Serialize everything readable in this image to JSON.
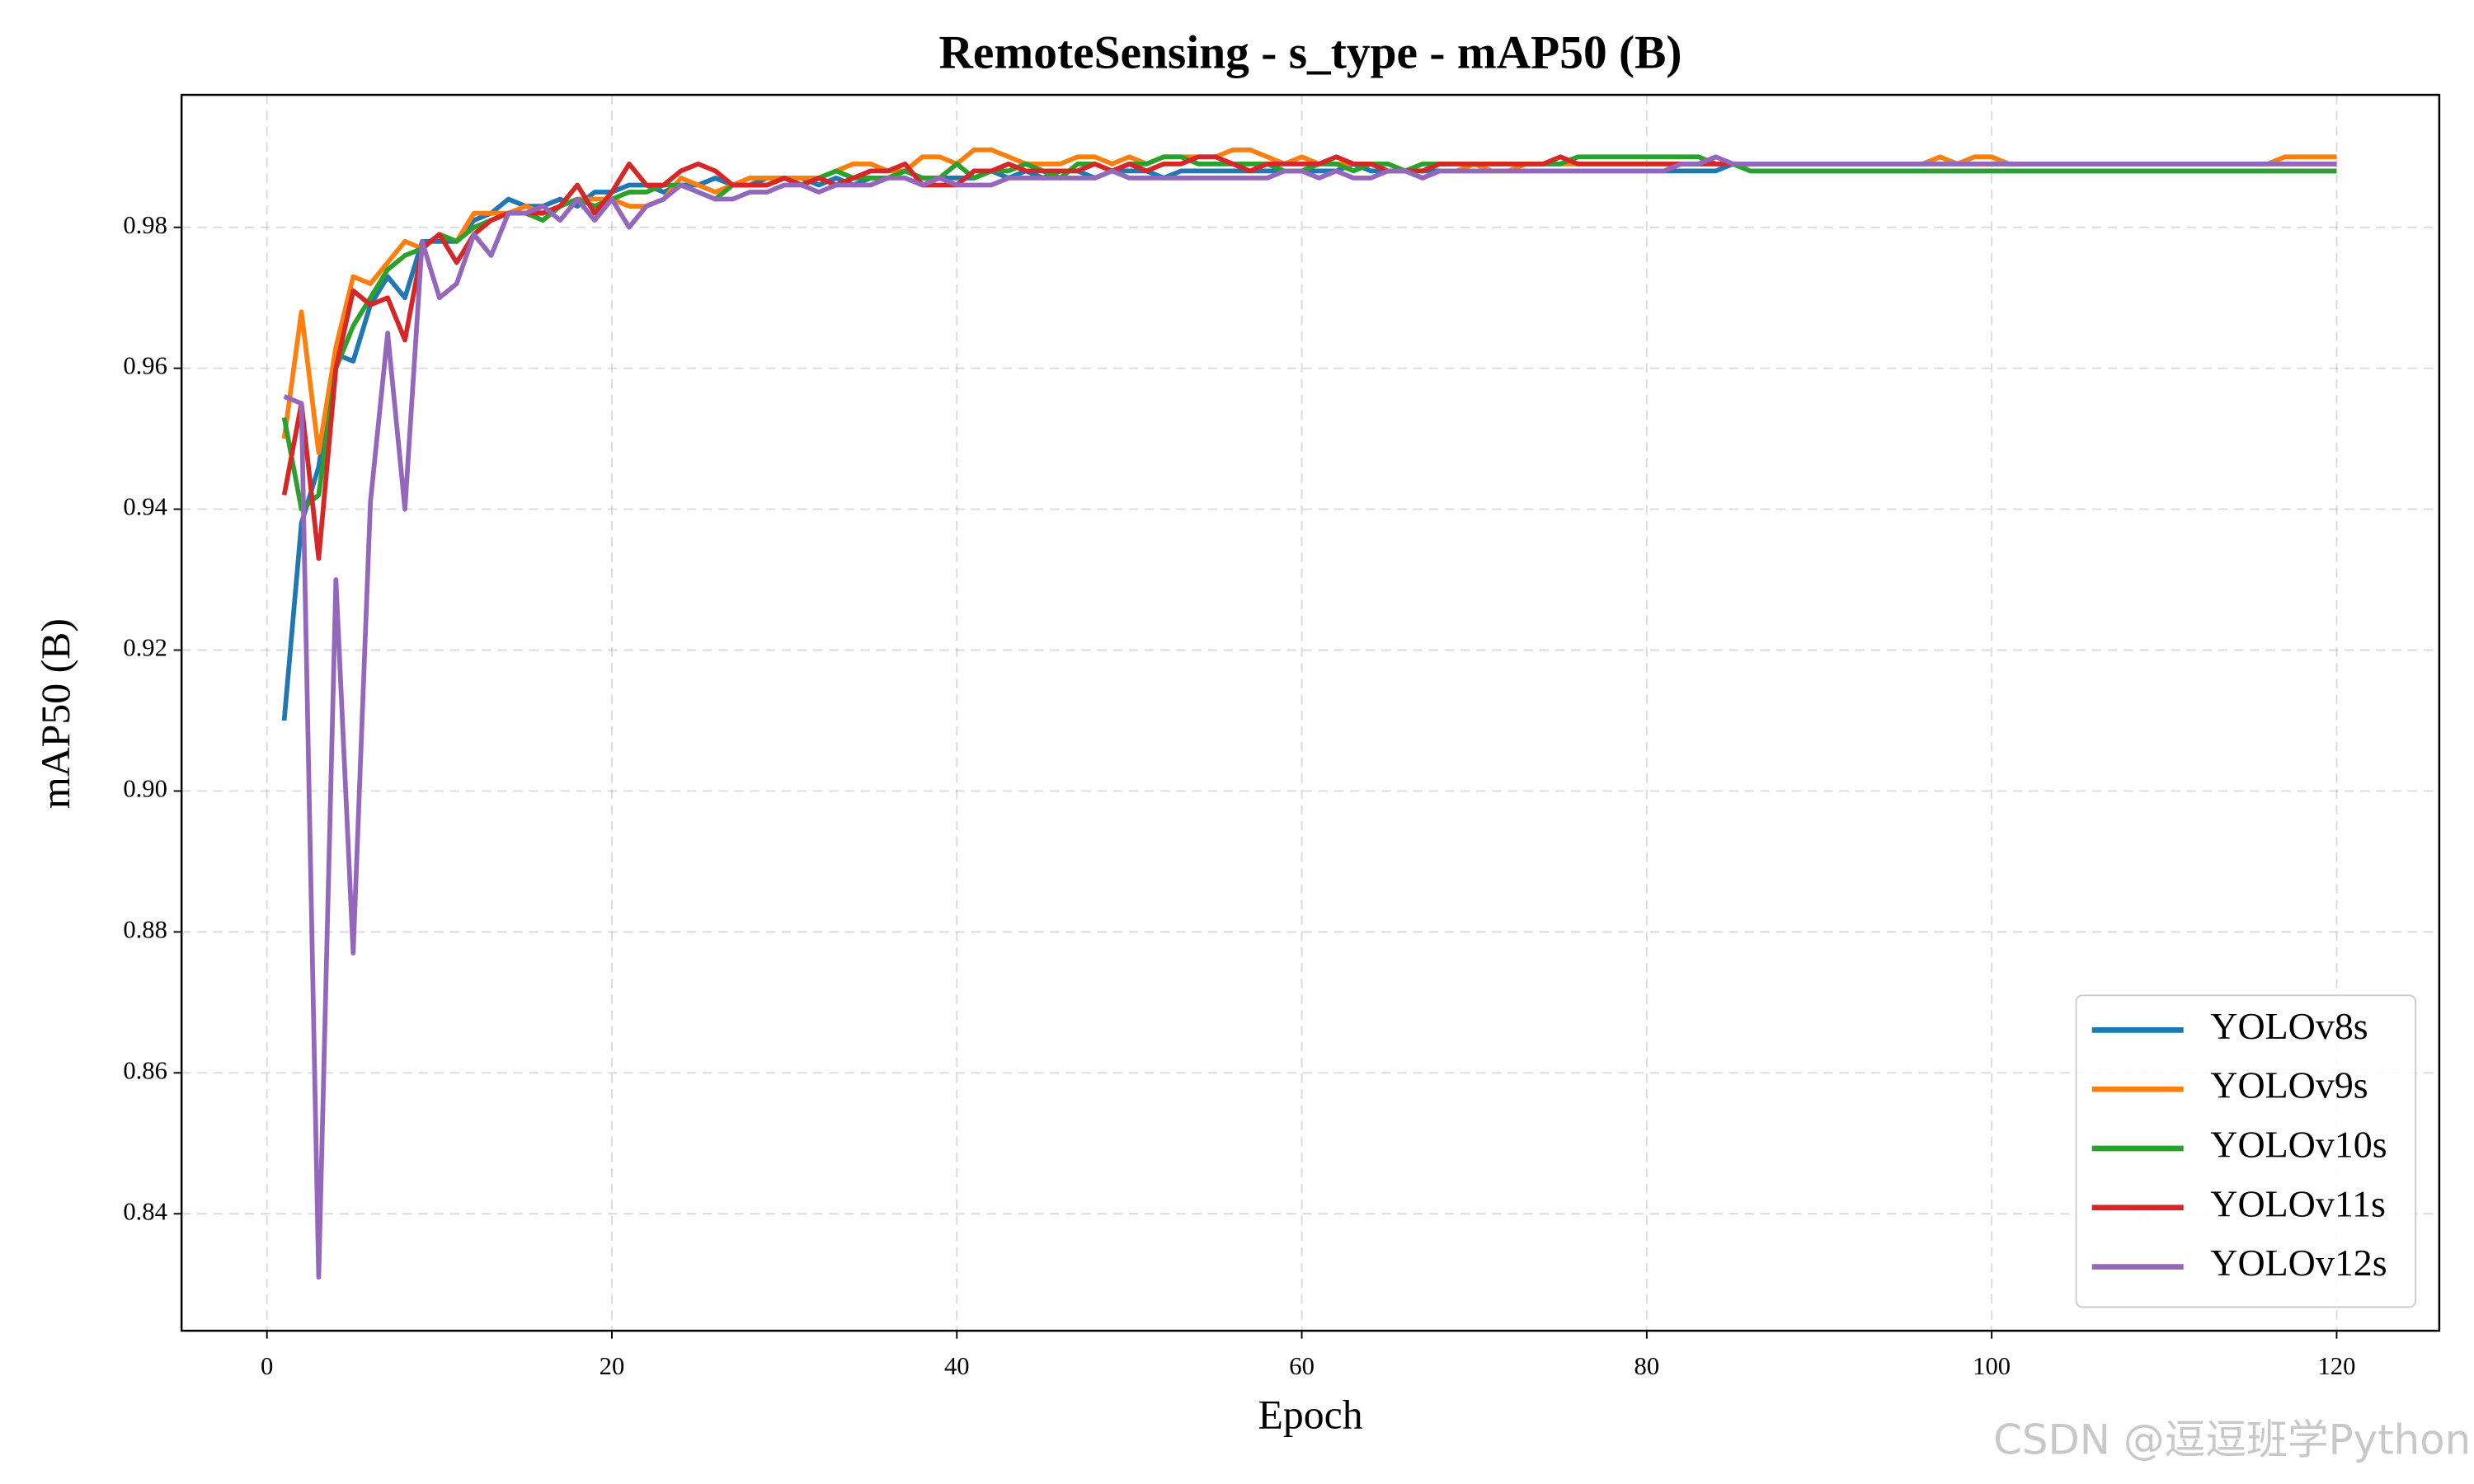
{
  "chart_data": {
    "type": "line",
    "title": "RemoteSensing - s_type - mAP50 (B)",
    "x_label": "Epoch",
    "y_label": "mAP50 (B)",
    "watermark": "CSDN @逗逗班学Python",
    "x": [
      1,
      2,
      3,
      4,
      5,
      6,
      7,
      8,
      9,
      10,
      11,
      12,
      13,
      14,
      15,
      16,
      17,
      18,
      19,
      20,
      21,
      22,
      23,
      24,
      25,
      26,
      27,
      28,
      29,
      30,
      31,
      32,
      33,
      34,
      35,
      36,
      37,
      38,
      39,
      40,
      41,
      42,
      43,
      44,
      45,
      46,
      47,
      48,
      49,
      50,
      51,
      52,
      53,
      54,
      55,
      56,
      57,
      58,
      59,
      60,
      61,
      62,
      63,
      64,
      65,
      66,
      67,
      68,
      69,
      70,
      71,
      72,
      73,
      74,
      75,
      76,
      77,
      78,
      79,
      80,
      81,
      82,
      83,
      84,
      85,
      86,
      87,
      88,
      89,
      90,
      91,
      92,
      93,
      94,
      95,
      96,
      97,
      98,
      99,
      100,
      101,
      102,
      103,
      104,
      105,
      106,
      107,
      108,
      109,
      110,
      111,
      112,
      113,
      114,
      115,
      116,
      117,
      118,
      119,
      120
    ],
    "xlim": [
      -4.95,
      125.95
    ],
    "xticks": [
      0,
      20,
      40,
      60,
      80,
      100,
      120
    ],
    "ylim": [
      0.8234,
      0.9988
    ],
    "yticks": [
      0.84,
      0.86,
      0.88,
      {
        "value": 0.9,
        "label": "0.90"
      },
      0.92,
      0.94,
      0.96,
      0.98
    ],
    "grid": true,
    "legend": "lower right",
    "series": [
      {
        "name": "YOLOv8s",
        "color": "#1f77b4",
        "values": [
          0.91,
          0.938,
          0.946,
          0.962,
          0.961,
          0.969,
          0.973,
          0.97,
          0.978,
          0.978,
          0.978,
          0.981,
          0.982,
          0.984,
          0.983,
          0.983,
          0.984,
          0.983,
          0.985,
          0.985,
          0.986,
          0.986,
          0.985,
          0.986,
          0.986,
          0.987,
          0.986,
          0.986,
          0.987,
          0.987,
          0.987,
          0.986,
          0.987,
          0.986,
          0.987,
          0.987,
          0.988,
          0.987,
          0.987,
          0.987,
          0.987,
          0.988,
          0.987,
          0.988,
          0.987,
          0.988,
          0.988,
          0.987,
          0.988,
          0.988,
          0.988,
          0.987,
          0.988,
          0.988,
          0.988,
          0.988,
          0.988,
          0.988,
          0.988,
          0.988,
          0.988,
          0.988,
          0.989,
          0.988,
          0.988,
          0.988,
          0.988,
          0.988,
          0.988,
          0.988,
          0.988,
          0.988,
          0.988,
          0.988,
          0.988,
          0.988,
          0.988,
          0.988,
          0.988,
          0.988,
          0.988,
          0.988,
          0.988,
          0.988,
          0.989,
          0.988,
          0.988,
          0.988,
          0.988,
          0.988,
          0.988,
          0.988,
          0.988,
          0.988,
          0.988,
          0.988,
          0.988,
          0.988,
          0.988,
          0.988,
          0.988,
          0.988,
          0.988,
          0.988,
          0.988,
          0.988,
          0.988,
          0.988,
          0.988,
          0.988,
          0.988,
          0.988,
          0.988,
          0.988,
          0.988,
          0.988,
          0.988,
          0.988,
          0.988,
          0.988
        ]
      },
      {
        "name": "YOLOv9s",
        "color": "#ff7f0e",
        "values": [
          0.95,
          0.968,
          0.948,
          0.963,
          0.973,
          0.972,
          0.975,
          0.978,
          0.977,
          0.979,
          0.978,
          0.982,
          0.982,
          0.982,
          0.983,
          0.982,
          0.983,
          0.984,
          0.984,
          0.984,
          0.983,
          0.983,
          0.984,
          0.987,
          0.986,
          0.985,
          0.986,
          0.987,
          0.987,
          0.987,
          0.987,
          0.987,
          0.988,
          0.989,
          0.989,
          0.988,
          0.988,
          0.99,
          0.99,
          0.989,
          0.991,
          0.991,
          0.99,
          0.989,
          0.989,
          0.989,
          0.99,
          0.99,
          0.989,
          0.99,
          0.989,
          0.99,
          0.99,
          0.99,
          0.99,
          0.991,
          0.991,
          0.99,
          0.989,
          0.99,
          0.989,
          0.989,
          0.989,
          0.989,
          0.988,
          0.988,
          0.987,
          0.988,
          0.988,
          0.989,
          0.988,
          0.988,
          0.989,
          0.989,
          0.989,
          0.989,
          0.989,
          0.989,
          0.989,
          0.989,
          0.989,
          0.989,
          0.989,
          0.989,
          0.989,
          0.989,
          0.989,
          0.989,
          0.989,
          0.989,
          0.989,
          0.989,
          0.989,
          0.989,
          0.989,
          0.989,
          0.99,
          0.989,
          0.99,
          0.99,
          0.989,
          0.989,
          0.989,
          0.989,
          0.989,
          0.989,
          0.989,
          0.989,
          0.989,
          0.989,
          0.989,
          0.989,
          0.989,
          0.989,
          0.989,
          0.989,
          0.99,
          0.99,
          0.99,
          0.99
        ]
      },
      {
        "name": "YOLOv10s",
        "color": "#2ca02c",
        "values": [
          0.953,
          0.94,
          0.942,
          0.96,
          0.966,
          0.97,
          0.974,
          0.976,
          0.977,
          0.979,
          0.978,
          0.98,
          0.981,
          0.982,
          0.982,
          0.981,
          0.983,
          0.984,
          0.983,
          0.984,
          0.985,
          0.985,
          0.986,
          0.986,
          0.985,
          0.984,
          0.986,
          0.986,
          0.986,
          0.987,
          0.986,
          0.987,
          0.988,
          0.987,
          0.987,
          0.987,
          0.988,
          0.987,
          0.987,
          0.989,
          0.987,
          0.988,
          0.988,
          0.989,
          0.988,
          0.987,
          0.989,
          0.989,
          0.988,
          0.989,
          0.989,
          0.99,
          0.99,
          0.989,
          0.989,
          0.989,
          0.989,
          0.989,
          0.988,
          0.988,
          0.989,
          0.989,
          0.988,
          0.989,
          0.989,
          0.988,
          0.989,
          0.989,
          0.989,
          0.989,
          0.989,
          0.989,
          0.989,
          0.989,
          0.989,
          0.99,
          0.99,
          0.99,
          0.99,
          0.99,
          0.99,
          0.99,
          0.99,
          0.989,
          0.989,
          0.988,
          0.988,
          0.988,
          0.988,
          0.988,
          0.988,
          0.988,
          0.988,
          0.988,
          0.988,
          0.988,
          0.988,
          0.988,
          0.988,
          0.988,
          0.988,
          0.988,
          0.988,
          0.988,
          0.988,
          0.988,
          0.988,
          0.988,
          0.988,
          0.988,
          0.988,
          0.988,
          0.988,
          0.988,
          0.988,
          0.988,
          0.988,
          0.988,
          0.988,
          0.988
        ]
      },
      {
        "name": "YOLOv11s",
        "color": "#d62728",
        "values": [
          0.942,
          0.955,
          0.933,
          0.96,
          0.971,
          0.969,
          0.97,
          0.964,
          0.977,
          0.979,
          0.975,
          0.979,
          0.981,
          0.982,
          0.982,
          0.982,
          0.983,
          0.986,
          0.982,
          0.985,
          0.989,
          0.986,
          0.986,
          0.988,
          0.989,
          0.988,
          0.986,
          0.986,
          0.986,
          0.987,
          0.986,
          0.987,
          0.986,
          0.987,
          0.988,
          0.988,
          0.989,
          0.986,
          0.986,
          0.986,
          0.988,
          0.988,
          0.989,
          0.988,
          0.988,
          0.988,
          0.988,
          0.989,
          0.988,
          0.989,
          0.988,
          0.989,
          0.989,
          0.99,
          0.99,
          0.989,
          0.988,
          0.989,
          0.989,
          0.989,
          0.989,
          0.99,
          0.989,
          0.989,
          0.988,
          0.988,
          0.988,
          0.989,
          0.989,
          0.989,
          0.989,
          0.989,
          0.989,
          0.989,
          0.99,
          0.989,
          0.989,
          0.989,
          0.989,
          0.989,
          0.989,
          0.989,
          0.989,
          0.989,
          0.989,
          0.989,
          0.989,
          0.989,
          0.989,
          0.989,
          0.989,
          0.989,
          0.989,
          0.989,
          0.989,
          0.989,
          0.989,
          0.989,
          0.989,
          0.989,
          0.989,
          0.989,
          0.989,
          0.989,
          0.989,
          0.989,
          0.989,
          0.989,
          0.989,
          0.989,
          0.989,
          0.989,
          0.989,
          0.989,
          0.989,
          0.989,
          0.989,
          0.989,
          0.989,
          0.989
        ]
      },
      {
        "name": "YOLOv12s",
        "color": "#9467bd",
        "values": [
          0.956,
          0.955,
          0.831,
          0.93,
          0.877,
          0.941,
          0.965,
          0.94,
          0.978,
          0.97,
          0.972,
          0.979,
          0.976,
          0.982,
          0.982,
          0.983,
          0.981,
          0.984,
          0.981,
          0.984,
          0.98,
          0.983,
          0.984,
          0.986,
          0.985,
          0.984,
          0.984,
          0.985,
          0.985,
          0.986,
          0.986,
          0.985,
          0.986,
          0.986,
          0.986,
          0.987,
          0.987,
          0.986,
          0.987,
          0.986,
          0.986,
          0.986,
          0.987,
          0.987,
          0.987,
          0.987,
          0.987,
          0.987,
          0.988,
          0.987,
          0.987,
          0.987,
          0.987,
          0.987,
          0.987,
          0.987,
          0.987,
          0.987,
          0.988,
          0.988,
          0.987,
          0.988,
          0.987,
          0.987,
          0.988,
          0.988,
          0.987,
          0.988,
          0.988,
          0.988,
          0.988,
          0.988,
          0.988,
          0.988,
          0.988,
          0.988,
          0.988,
          0.988,
          0.988,
          0.988,
          0.988,
          0.989,
          0.989,
          0.99,
          0.989,
          0.989,
          0.989,
          0.989,
          0.989,
          0.989,
          0.989,
          0.989,
          0.989,
          0.989,
          0.989,
          0.989,
          0.989,
          0.989,
          0.989,
          0.989,
          0.989,
          0.989,
          0.989,
          0.989,
          0.989,
          0.989,
          0.989,
          0.989,
          0.989,
          0.989,
          0.989,
          0.989,
          0.989,
          0.989,
          0.989,
          0.989,
          0.989,
          0.989,
          0.989,
          0.989
        ]
      }
    ]
  }
}
